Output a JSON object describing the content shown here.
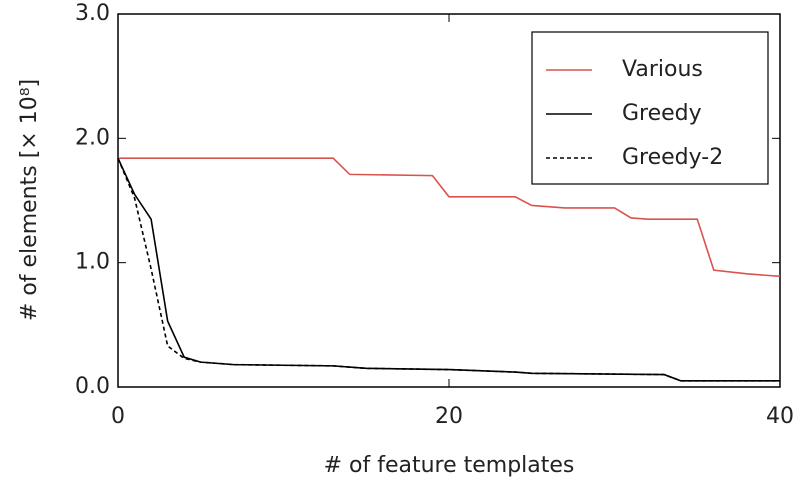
{
  "chart_data": {
    "type": "line",
    "xlabel": "# of feature templates",
    "ylabel": "# of elements [× 10⁸]",
    "xlim": [
      0,
      40
    ],
    "xticks": [
      0,
      20,
      40
    ],
    "ylim": [
      0,
      3
    ],
    "yticks": [
      {
        "value": 0,
        "label": "0.0"
      },
      {
        "value": 1,
        "label": "1.0"
      },
      {
        "value": 2,
        "label": "2.0"
      },
      {
        "value": 3,
        "label": "3.0"
      }
    ],
    "legend": "upper right",
    "series": [
      {
        "name": "Various",
        "color": "#d9534f",
        "dash": false,
        "x": [
          0,
          13,
          14,
          19,
          20,
          24,
          25,
          27,
          30,
          31,
          32,
          35,
          36,
          38,
          40
        ],
        "values": [
          1.84,
          1.84,
          1.71,
          1.7,
          1.53,
          1.53,
          1.46,
          1.44,
          1.44,
          1.36,
          1.35,
          1.35,
          0.94,
          0.91,
          0.89
        ]
      },
      {
        "name": "Greedy",
        "color": "#000000",
        "dash": false,
        "x": [
          0,
          1,
          2,
          3,
          4,
          5,
          7,
          13,
          15,
          20,
          24,
          25,
          33,
          34,
          40
        ],
        "values": [
          1.84,
          1.55,
          1.35,
          0.53,
          0.24,
          0.2,
          0.18,
          0.17,
          0.15,
          0.14,
          0.12,
          0.11,
          0.1,
          0.05,
          0.05
        ]
      },
      {
        "name": "Greedy-2",
        "color": "#000000",
        "dash": true,
        "x": [
          0,
          1,
          2,
          3,
          4,
          5,
          7,
          13,
          15,
          20,
          24,
          25,
          33,
          34,
          40
        ],
        "values": [
          1.84,
          1.52,
          0.95,
          0.33,
          0.23,
          0.2,
          0.18,
          0.17,
          0.15,
          0.14,
          0.12,
          0.11,
          0.1,
          0.05,
          0.05
        ]
      }
    ]
  }
}
